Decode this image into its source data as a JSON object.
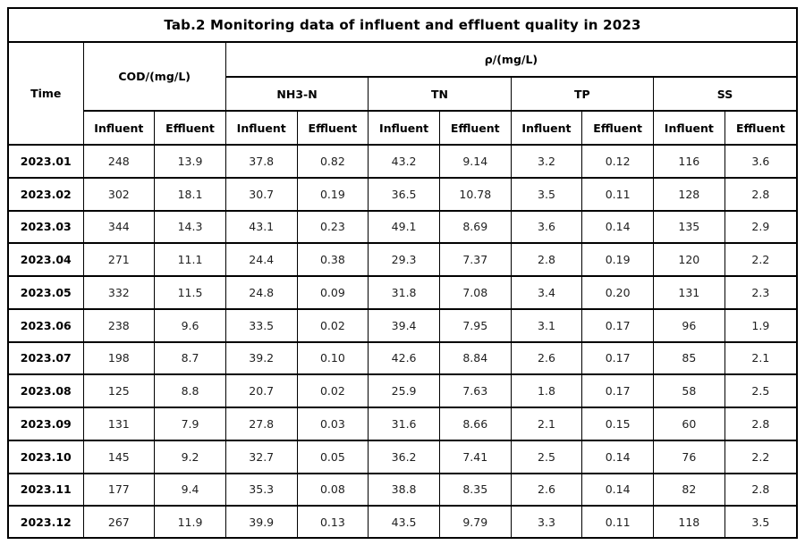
{
  "title": "Tab.2 Monitoring data of influent and effluent quality in 2023",
  "colors": {
    "border": "#000000",
    "background": "#ffffff",
    "header_text": "#000000",
    "data_text": "#1f1f1f"
  },
  "table": {
    "header": {
      "time_label": "Time",
      "cod_label": "COD/(mg/L)",
      "rho_label": "ρ/(mg/L)",
      "param_groups": [
        "NH3-N",
        "TN",
        "TP",
        "SS"
      ],
      "influent_label": "Influent",
      "effluent_label": "Effluent"
    },
    "rows": [
      {
        "time": "2023.01",
        "values": [
          "248",
          "13.9",
          "37.8",
          "0.82",
          "43.2",
          "9.14",
          "3.2",
          "0.12",
          "116",
          "3.6"
        ]
      },
      {
        "time": "2023.02",
        "values": [
          "302",
          "18.1",
          "30.7",
          "0.19",
          "36.5",
          "10.78",
          "3.5",
          "0.11",
          "128",
          "2.8"
        ]
      },
      {
        "time": "2023.03",
        "values": [
          "344",
          "14.3",
          "43.1",
          "0.23",
          "49.1",
          "8.69",
          "3.6",
          "0.14",
          "135",
          "2.9"
        ]
      },
      {
        "time": "2023.04",
        "values": [
          "271",
          "11.1",
          "24.4",
          "0.38",
          "29.3",
          "7.37",
          "2.8",
          "0.19",
          "120",
          "2.2"
        ]
      },
      {
        "time": "2023.05",
        "values": [
          "332",
          "11.5",
          "24.8",
          "0.09",
          "31.8",
          "7.08",
          "3.4",
          "0.20",
          "131",
          "2.3"
        ]
      },
      {
        "time": "2023.06",
        "values": [
          "238",
          "9.6",
          "33.5",
          "0.02",
          "39.4",
          "7.95",
          "3.1",
          "0.17",
          "96",
          "1.9"
        ]
      },
      {
        "time": "2023.07",
        "values": [
          "198",
          "8.7",
          "39.2",
          "0.10",
          "42.6",
          "8.84",
          "2.6",
          "0.17",
          "85",
          "2.1"
        ]
      },
      {
        "time": "2023.08",
        "values": [
          "125",
          "8.8",
          "20.7",
          "0.02",
          "25.9",
          "7.63",
          "1.8",
          "0.17",
          "58",
          "2.5"
        ]
      },
      {
        "time": "2023.09",
        "values": [
          "131",
          "7.9",
          "27.8",
          "0.03",
          "31.6",
          "8.66",
          "2.1",
          "0.15",
          "60",
          "2.8"
        ]
      },
      {
        "time": "2023.10",
        "values": [
          "145",
          "9.2",
          "32.7",
          "0.05",
          "36.2",
          "7.41",
          "2.5",
          "0.14",
          "76",
          "2.2"
        ]
      },
      {
        "time": "2023.11",
        "values": [
          "177",
          "9.4",
          "35.3",
          "0.08",
          "38.8",
          "8.35",
          "2.6",
          "0.14",
          "82",
          "2.8"
        ]
      },
      {
        "time": "2023.12",
        "values": [
          "267",
          "11.9",
          "39.9",
          "0.13",
          "43.5",
          "9.79",
          "3.3",
          "0.11",
          "118",
          "3.5"
        ]
      }
    ]
  }
}
